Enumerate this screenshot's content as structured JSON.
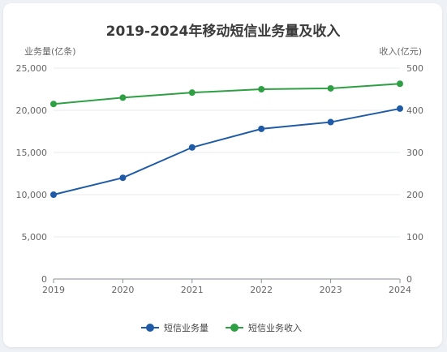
{
  "chart_data": {
    "type": "line",
    "title": "2019-2024年移动短信业务量及收入",
    "left_axis_label": "业务量(亿条)",
    "right_axis_label": "收入(亿元)",
    "categories": [
      "2019",
      "2020",
      "2021",
      "2022",
      "2023",
      "2024"
    ],
    "left_ylim": [
      0,
      25000
    ],
    "left_ticks": [
      "0",
      "5,000",
      "10,000",
      "15,000",
      "20,000",
      "25,000"
    ],
    "right_ylim": [
      0,
      500
    ],
    "right_ticks": [
      "0",
      "100",
      "200",
      "300",
      "400",
      "500"
    ],
    "grid": true,
    "legend_position": "bottom",
    "series": [
      {
        "name": "短信业务量",
        "axis": "left",
        "color": "#1f5aa6",
        "values": [
          10000,
          12000,
          15600,
          17800,
          18600,
          20200
        ]
      },
      {
        "name": "短信业务收入",
        "axis": "right",
        "color": "#2ea043",
        "values": [
          415,
          430,
          442,
          450,
          452,
          463
        ]
      }
    ]
  }
}
